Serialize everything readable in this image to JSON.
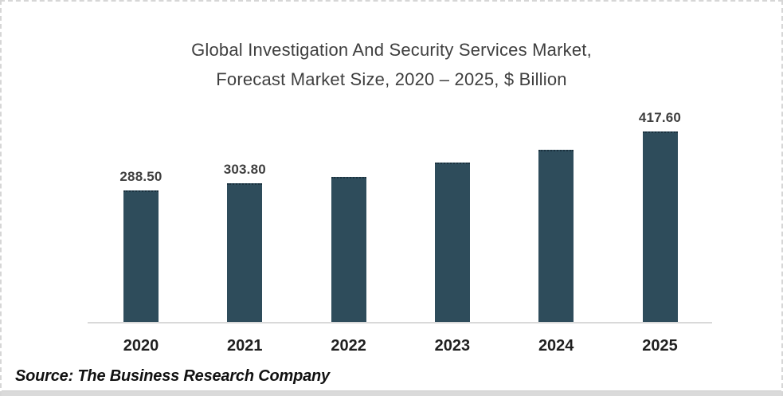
{
  "chart_data": {
    "type": "bar",
    "title": "Global Investigation And Security Services Market, Forecast Market Size, 2020 – 2025, $ Billion",
    "title_lines": [
      "Global Investigation And Security Services Market,",
      "Forecast Market Size, 2020 – 2025, $ Billion"
    ],
    "unit": "$ Billion",
    "categories": [
      "2020",
      "2021",
      "2022",
      "2023",
      "2024",
      "2025"
    ],
    "values": [
      288.5,
      303.8,
      319.0,
      349.0,
      378.0,
      417.6
    ],
    "data_labels": [
      "288.50",
      "303.80",
      "",
      "",
      "",
      "417.60"
    ],
    "values_estimated_from_pixels": [
      false,
      false,
      true,
      true,
      true,
      false
    ],
    "ylim": [
      0,
      460
    ],
    "grid": false,
    "legend": "none",
    "bar_color": "#2E4C5B",
    "axis_line_color": "#D9D9D9",
    "data_label_color": "#404040",
    "tick_label_color": "#1F1F1F",
    "title_color": "#3F3F3F"
  },
  "footer": {
    "source_note": "Source: The Business Research Company"
  }
}
